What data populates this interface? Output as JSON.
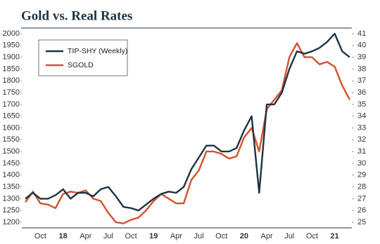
{
  "chart_data": {
    "type": "line",
    "title": "Gold vs. Real Rates",
    "categories": [
      null,
      null,
      "Oct",
      null,
      null,
      "18",
      null,
      null,
      "Apr",
      null,
      null,
      "Jul",
      null,
      null,
      "Oct",
      null,
      null,
      "19",
      null,
      null,
      "Apr",
      null,
      null,
      "Jul",
      null,
      null,
      "Oct",
      null,
      null,
      "20",
      null,
      null,
      "Apr",
      null,
      null,
      "Jul",
      null,
      null,
      "Oct",
      null,
      null,
      "21",
      null,
      null
    ],
    "ylim": [
      1200,
      2000
    ],
    "yticks": [
      1200,
      1250,
      1300,
      1350,
      1400,
      1450,
      1500,
      1550,
      1600,
      1650,
      1700,
      1750,
      1800,
      1850,
      1900,
      1950,
      2000
    ],
    "y2lim": [
      25,
      41
    ],
    "y2ticks": [
      25,
      26,
      27,
      28,
      29,
      30,
      31,
      32,
      33,
      34,
      35,
      36,
      37,
      38,
      39,
      40,
      41
    ],
    "series": [
      {
        "name": "TIP-SHY (Weekly)",
        "color": "#1b3444",
        "axis": "y2",
        "values": [
          27,
          27.5,
          27,
          27,
          27.3,
          27.8,
          27,
          27.5,
          27.5,
          27.2,
          27.8,
          28,
          27.2,
          26.3,
          26.2,
          26,
          26.5,
          27,
          27.4,
          27.6,
          27.5,
          28,
          29.5,
          30.5,
          31.5,
          31.5,
          31,
          31,
          31.3,
          32.8,
          34,
          27.5,
          35,
          35,
          36,
          38,
          39.5,
          39.3,
          39.5,
          39.8,
          40.3,
          41,
          39.5,
          39
        ]
      },
      {
        "name": "SGOLD",
        "color": "#d4512a",
        "values": [
          1285,
          1330,
          1280,
          1275,
          1260,
          1320,
          1330,
          1325,
          1335,
          1300,
          1290,
          1240,
          1200,
          1195,
          1210,
          1220,
          1250,
          1290,
          1320,
          1300,
          1280,
          1280,
          1380,
          1420,
          1500,
          1500,
          1490,
          1470,
          1480,
          1560,
          1600,
          1500,
          1680,
          1720,
          1760,
          1900,
          1960,
          1900,
          1900,
          1870,
          1880,
          1860,
          1780,
          1720
        ]
      }
    ],
    "legend": "upper left"
  }
}
